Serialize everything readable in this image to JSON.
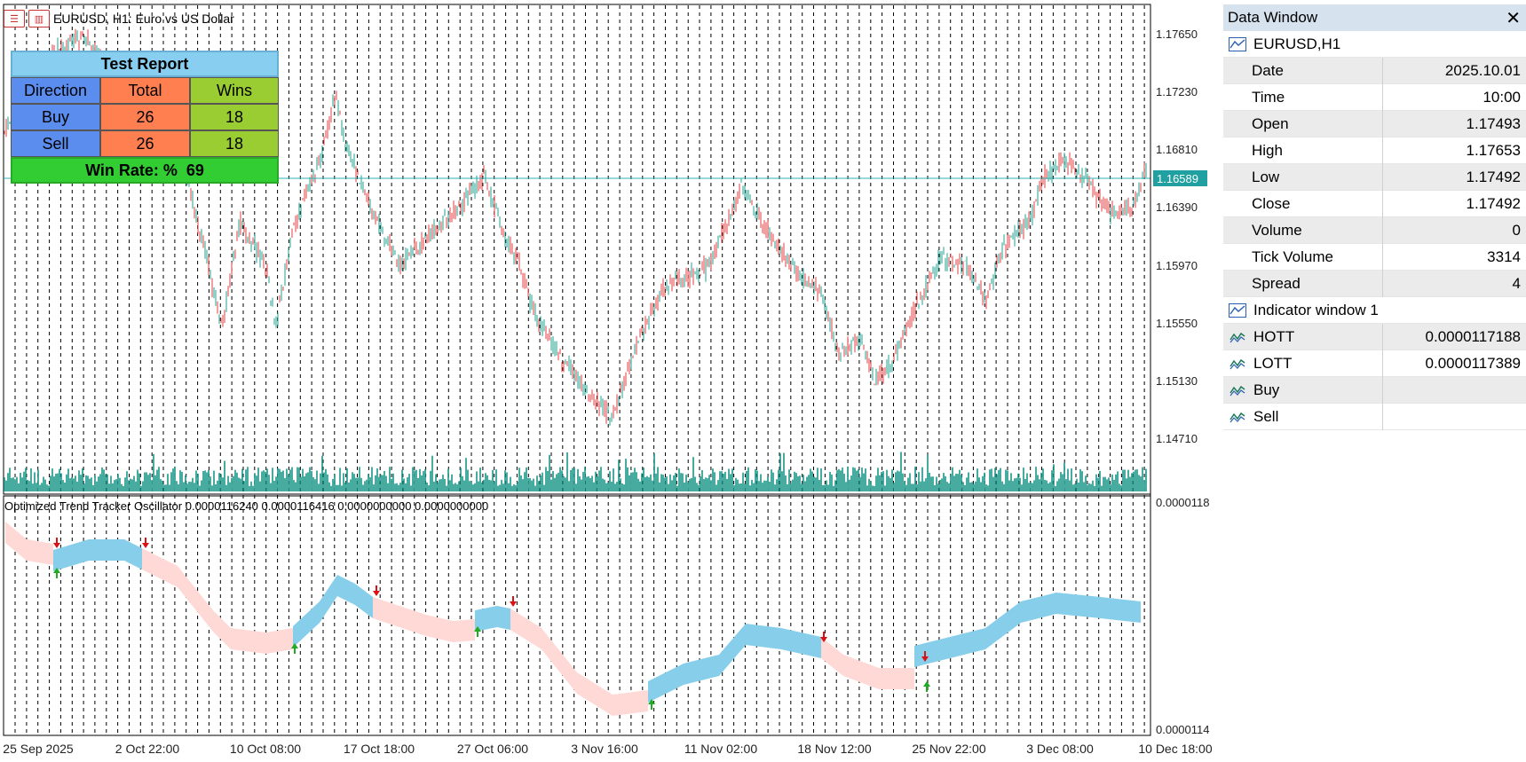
{
  "chart": {
    "title": "EURUSD, H1:  Euro vs US Dollar",
    "price_labels": [
      "1.17650",
      "1.17230",
      "1.16810",
      "1.16390",
      "1.15970",
      "1.15550",
      "1.15130",
      "1.14710"
    ],
    "current_price": "1.16589",
    "time_labels": [
      "25 Sep 2025",
      "2 Oct 22:00",
      "10 Oct 08:00",
      "17 Oct 18:00",
      "27 Oct 06:00",
      "3 Nov 16:00",
      "11 Nov 02:00",
      "18 Nov 12:00",
      "25 Nov 22:00",
      "3 Dec 08:00",
      "10 Dec 18:00"
    ],
    "colors": {
      "bull": "#20a08c",
      "bear": "#e04040",
      "volume": "#1a9688",
      "hott_band": "#87ceeb",
      "lott_band": "#ffd9d6",
      "grid": "#000000",
      "level_line": "#30b0b0"
    }
  },
  "report": {
    "title": "Test Report",
    "headers": [
      "Direction",
      "Total",
      "Wins"
    ],
    "rows": [
      {
        "direction": "Buy",
        "total": "26",
        "wins": "18"
      },
      {
        "direction": "Sell",
        "total": "26",
        "wins": "18"
      }
    ],
    "win_rate_label": "Win Rate: %",
    "win_rate_value": "69"
  },
  "oscillator": {
    "title": "Optimized Trend Tracker Oscillator 0.0000116240 0.0000116416 0.0000000000 0.0000000000",
    "scale_top": "0.0000118",
    "scale_bottom": "0.0000114"
  },
  "data_window": {
    "title": "Data Window",
    "symbol": "EURUSD,H1",
    "rows": [
      {
        "name": "Date",
        "value": "2025.10.01"
      },
      {
        "name": "Time",
        "value": "10:00"
      },
      {
        "name": "Open",
        "value": "1.17493"
      },
      {
        "name": "High",
        "value": "1.17653"
      },
      {
        "name": "Low",
        "value": "1.17492"
      },
      {
        "name": "Close",
        "value": "1.17492"
      },
      {
        "name": "Volume",
        "value": "0"
      },
      {
        "name": "Tick Volume",
        "value": "3314"
      },
      {
        "name": "Spread",
        "value": "4"
      }
    ],
    "indicator_title": "Indicator window 1",
    "indicator_rows": [
      {
        "name": "HOTT",
        "value": "0.0000117188"
      },
      {
        "name": "LOTT",
        "value": "0.0000117389"
      },
      {
        "name": "Buy",
        "value": ""
      },
      {
        "name": "Sell",
        "value": ""
      }
    ]
  }
}
